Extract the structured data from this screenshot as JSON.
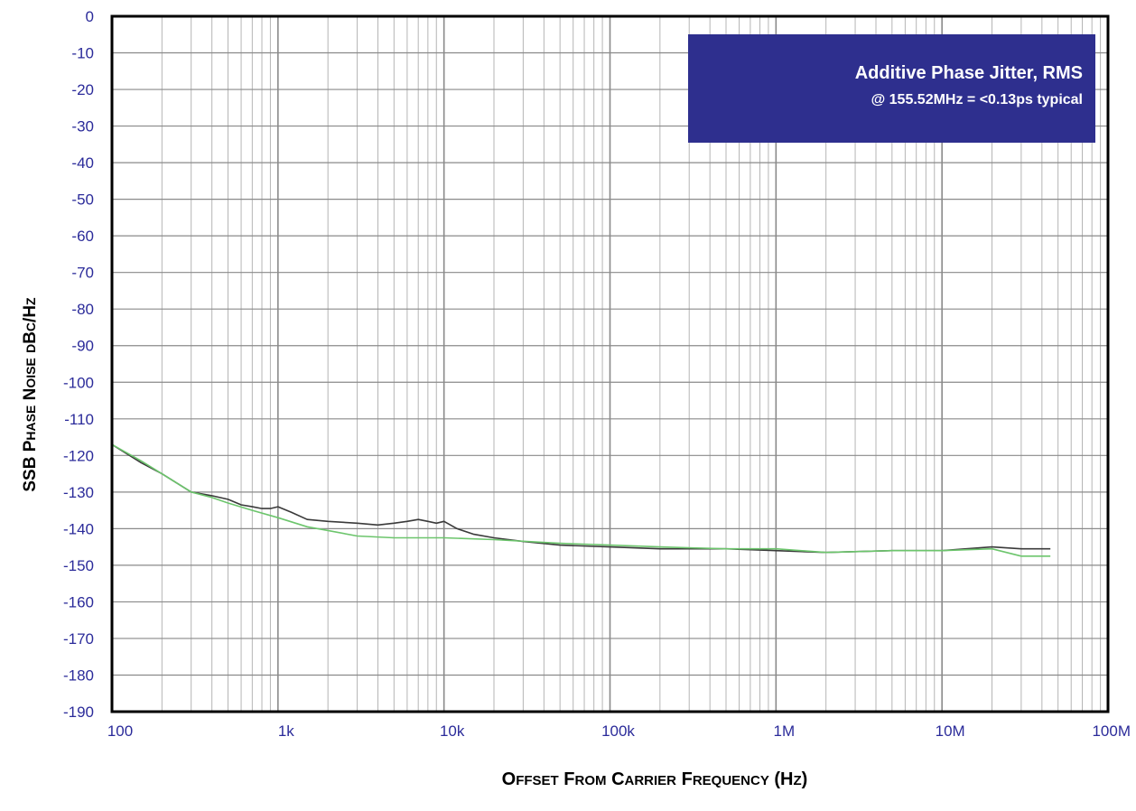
{
  "chart_data": {
    "type": "line",
    "title": "",
    "xlabel": "Offset From Carrier Frequency (Hz)",
    "ylabel": "SSB Phase Noise dBc/Hz",
    "x_scale": "log",
    "xlim": [
      100,
      100000000
    ],
    "ylim": [
      -190,
      0
    ],
    "x_ticks": [
      {
        "value": 100,
        "label": "100"
      },
      {
        "value": 1000,
        "label": "1k"
      },
      {
        "value": 10000,
        "label": "10k"
      },
      {
        "value": 100000,
        "label": "100k"
      },
      {
        "value": 1000000,
        "label": "1M"
      },
      {
        "value": 10000000,
        "label": "10M"
      },
      {
        "value": 100000000,
        "label": "100M"
      }
    ],
    "y_ticks": [
      0,
      -10,
      -20,
      -30,
      -40,
      -50,
      -60,
      -70,
      -80,
      -90,
      -100,
      -110,
      -120,
      -130,
      -140,
      -150,
      -160,
      -170,
      -180,
      -190
    ],
    "grid": true,
    "annotation": {
      "line1": "Additive Phase Jitter, RMS",
      "line2": "@ 155.52MHz = <0.13ps typical",
      "fill": "#2e2f8e"
    },
    "series": [
      {
        "color": "#3a3a3a",
        "x": [
          100,
          150,
          200,
          300,
          400,
          500,
          600,
          700,
          800,
          900,
          1000,
          1200,
          1500,
          2000,
          3000,
          4000,
          5000,
          6000,
          7000,
          8000,
          9000,
          10000,
          12000,
          15000,
          20000,
          30000,
          50000,
          100000,
          200000,
          500000,
          1000000,
          2000000,
          5000000,
          10000000,
          20000000,
          30000000,
          45000000
        ],
        "y": [
          -117,
          -122,
          -125,
          -130,
          -131,
          -132,
          -133.5,
          -134,
          -134.5,
          -134.5,
          -134,
          -135.5,
          -137.5,
          -138,
          -138.5,
          -139,
          -138.5,
          -138,
          -137.5,
          -138,
          -138.5,
          -138,
          -140,
          -141.5,
          -142.5,
          -143.5,
          -144.5,
          -145,
          -145.5,
          -145.5,
          -146,
          -146.5,
          -146,
          -146,
          -145,
          -145.5,
          -145.5
        ]
      },
      {
        "color": "#6cc56c",
        "x": [
          100,
          150,
          200,
          300,
          400,
          500,
          700,
          1000,
          1500,
          2000,
          3000,
          5000,
          10000,
          20000,
          50000,
          100000,
          200000,
          500000,
          1000000,
          2000000,
          5000000,
          10000000,
          20000000,
          30000000,
          45000000
        ],
        "y": [
          -117,
          -121.5,
          -125,
          -130,
          -131.5,
          -133,
          -135,
          -137,
          -139.5,
          -140.5,
          -142,
          -142.5,
          -142.5,
          -143,
          -144,
          -144.5,
          -145,
          -145.5,
          -145.5,
          -146.5,
          -146,
          -146,
          -145.5,
          -147.5,
          -147.5
        ]
      }
    ]
  }
}
